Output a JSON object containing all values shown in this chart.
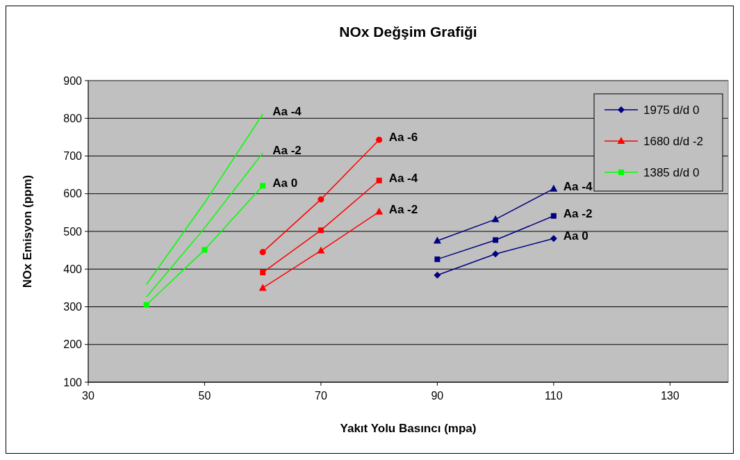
{
  "chart_data": {
    "type": "line",
    "title": "NOx Değşim Grafiği",
    "xlabel": "Yakıt Yolu Basıncı (mpa)",
    "ylabel": "NOx Emisyon (ppm)",
    "xlim": [
      30,
      140
    ],
    "xticks": [
      30,
      50,
      70,
      90,
      110,
      130
    ],
    "ylim": [
      100,
      900
    ],
    "yticks": [
      100,
      200,
      300,
      400,
      500,
      600,
      700,
      800,
      900
    ],
    "grid": "y",
    "legend": "top right",
    "series": [
      {
        "name": "1975 d/d 0",
        "color": "#000080",
        "marker": "diamond",
        "x": [
          90,
          100,
          110
        ],
        "values": [
          384,
          440,
          481
        ]
      },
      {
        "name": "1680 d/d -2",
        "color": "#ff0000",
        "marker": "triangle",
        "x": [
          60,
          70,
          80
        ],
        "values": [
          350,
          449,
          552
        ]
      },
      {
        "name": "1385 d/d 0",
        "color": "#00ff00",
        "marker": "square",
        "x": [
          40,
          50,
          60
        ],
        "values": [
          305,
          451,
          621
        ]
      },
      {
        "color": "#000080",
        "marker": "square",
        "x": [
          90,
          100,
          110
        ],
        "values": [
          426,
          477,
          541
        ]
      },
      {
        "color": "#000080",
        "marker": "triangle",
        "x": [
          90,
          100,
          110
        ],
        "values": [
          475,
          532,
          613
        ]
      },
      {
        "color": "#ff0000",
        "marker": "square",
        "x": [
          60,
          70,
          80
        ],
        "values": [
          391,
          503,
          635
        ]
      },
      {
        "color": "#ff0000",
        "marker": "circle",
        "x": [
          60,
          70,
          80
        ],
        "values": [
          445,
          585,
          743
        ]
      },
      {
        "color": "#00ff00",
        "marker": "none",
        "x": [
          40,
          50,
          60
        ],
        "values": [
          326,
          509,
          708
        ]
      },
      {
        "color": "#00ff00",
        "marker": "none",
        "x": [
          40,
          50,
          60
        ],
        "values": [
          359,
          576,
          811
        ]
      }
    ],
    "annotations": [
      {
        "text": "Aa -4",
        "x": 60,
        "y": 811
      },
      {
        "text": "Aa -2",
        "x": 60,
        "y": 708
      },
      {
        "text": "Aa 0",
        "x": 60,
        "y": 621
      },
      {
        "text": "Aa -6",
        "x": 80,
        "y": 743
      },
      {
        "text": "Aa -4",
        "x": 80,
        "y": 635
      },
      {
        "text": "Aa -2",
        "x": 80,
        "y": 552
      },
      {
        "text": "Aa -4",
        "x": 110,
        "y": 613
      },
      {
        "text": "Aa -2",
        "x": 110,
        "y": 541
      },
      {
        "text": "Aa 0",
        "x": 110,
        "y": 481
      }
    ]
  }
}
